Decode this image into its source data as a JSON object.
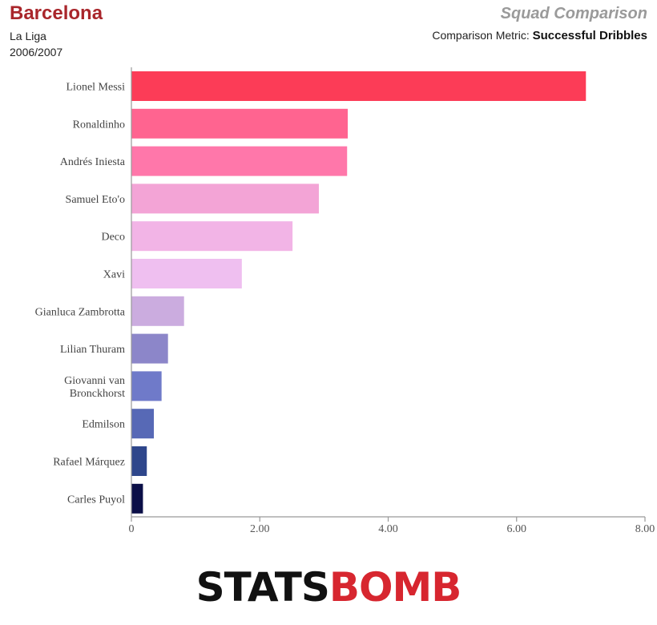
{
  "header": {
    "team": "Barcelona",
    "league": "La Liga",
    "season": "2006/2007",
    "subtitle": "Squad Comparison",
    "metric_prefix": "Comparison Metric:",
    "metric": "Successful Dribbles"
  },
  "logo": {
    "part1": "STATS",
    "part2": "BOMB"
  },
  "chart_data": {
    "type": "bar",
    "orientation": "horizontal",
    "categories": [
      "Lionel Messi",
      "Ronaldinho",
      "Andrés Iniesta",
      "Samuel Eto'o",
      "Deco",
      "Xavi",
      "Gianluca Zambrotta",
      "Lilian Thuram",
      "Giovanni van Bronckhorst",
      "Edmilson",
      "Rafael Márquez",
      "Carles Puyol"
    ],
    "values": [
      7.08,
      3.37,
      3.36,
      2.92,
      2.51,
      1.72,
      0.82,
      0.57,
      0.47,
      0.35,
      0.24,
      0.18
    ],
    "colors": [
      "#fc3c57",
      "#ff6490",
      "#ff77aa",
      "#f3a4d6",
      "#f2b4e6",
      "#efbff0",
      "#cbacdf",
      "#8c86c9",
      "#6f7ac9",
      "#5769b6",
      "#2e468b",
      "#0b0f47"
    ],
    "xlim": [
      0,
      8
    ],
    "xticks": [
      "0",
      "2.00",
      "4.00",
      "6.00",
      "8.00"
    ],
    "xtick_values": [
      0,
      2,
      4,
      6,
      8
    ],
    "grid": false
  }
}
